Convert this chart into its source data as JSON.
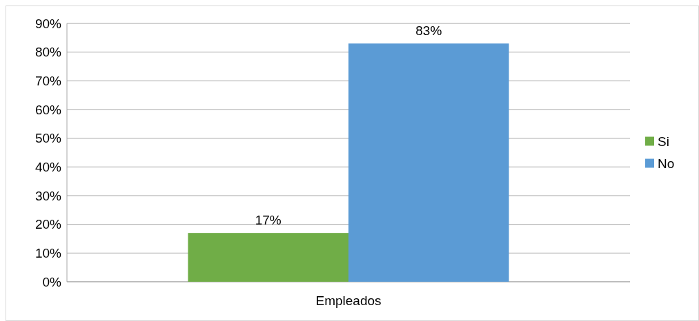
{
  "chart_data": {
    "type": "bar",
    "categories": [
      "Empleados"
    ],
    "series": [
      {
        "name": "Si",
        "color": "#70ad47",
        "values": [
          17
        ],
        "value_labels": [
          "17%"
        ]
      },
      {
        "name": "No",
        "color": "#5b9bd5",
        "values": [
          83
        ],
        "value_labels": [
          "83%"
        ]
      }
    ],
    "ylim": [
      0,
      90
    ],
    "yticks": [
      {
        "value": 0,
        "label": "0%"
      },
      {
        "value": 10,
        "label": "10%"
      },
      {
        "value": 20,
        "label": "20%"
      },
      {
        "value": 30,
        "label": "30%"
      },
      {
        "value": 40,
        "label": "40%"
      },
      {
        "value": 50,
        "label": "50%"
      },
      {
        "value": 60,
        "label": "60%"
      },
      {
        "value": 70,
        "label": "70%"
      },
      {
        "value": 80,
        "label": "80%"
      },
      {
        "value": 90,
        "label": "90%"
      }
    ],
    "grid": "y",
    "legend": "right"
  }
}
